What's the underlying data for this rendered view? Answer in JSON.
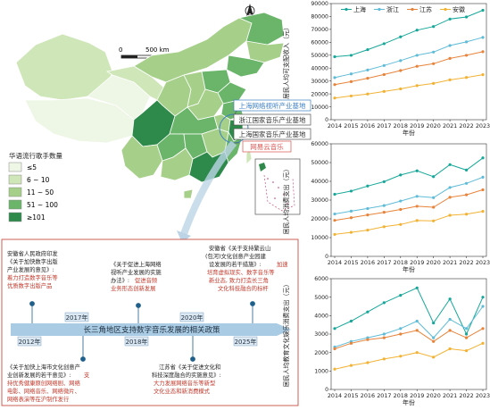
{
  "map": {
    "scale_label": "500 km",
    "scale_zero": "0",
    "legend_title": "华语流行歌手数量",
    "legend_items": [
      "≤5",
      "6 ~ 10",
      "11 ~ 50",
      "51 ~ 100",
      "≥101"
    ],
    "legend_colors": [
      "#eef6e6",
      "#cfe6b8",
      "#a6d08a",
      "#6ab56a",
      "#2e8a4a"
    ],
    "callouts": [
      "上海网络视听产业基地",
      "浙江国家音乐产业基地",
      "上海国家音乐产业基地",
      "网易云音乐"
    ]
  },
  "timeline": {
    "title": "长三角地区支持数字音乐发展的相关政策",
    "years": [
      "2012年",
      "2017年",
      "2018年",
      "2020年",
      "2025年"
    ],
    "policies": [
      {
        "year": "2012年",
        "lines_black": [
          "安徽省人民政府印发",
          "《关于加快数字出版",
          "产业发展的意见》:"
        ],
        "lines_red": [
          "着力打造数字音乐等",
          "优质数字出版产品"
        ]
      },
      {
        "year": "2017年",
        "lines_black": [
          "《关于加快上海市文化创意产",
          "业创新发展的若干意见》:"
        ],
        "lines_red": [
          "支",
          "持优秀健康原创网络剧、网络",
          "电影、网络音乐、网络微片、",
          "网络表演等在沪制作发行"
        ]
      },
      {
        "year": "2018年",
        "lines_black": [
          "《关于促进上海网络",
          "视听产业发展的实施",
          "办法》:"
        ],
        "lines_red": [
          "促进音频",
          "业务形态创新发展"
        ]
      },
      {
        "year": "2020年",
        "lines_black": [
          "江苏省《关于促进文化和",
          "科技深度融合的实施意见》:"
        ],
        "lines_red": [
          "大力发展网络音乐等新型",
          "文化业态和新消费模式"
        ]
      },
      {
        "year": "2025年",
        "lines_black": [
          "安徽省《关于支持繁云山",
          "(包河)文化创意产业园建",
          "设发展的若干措施》:"
        ],
        "lines_red": [
          "加速",
          "培育虚拟现实、数字音乐等",
          "新业态, 致力打造长三角",
          "文化科技融合的标杆"
        ]
      }
    ]
  },
  "chart_data": [
    {
      "type": "line",
      "title": "",
      "xlabel": "年份",
      "ylabel": "居民人均可支配收入（元）",
      "x": [
        "2014",
        "2015",
        "2016",
        "2017",
        "2018",
        "2019",
        "2020",
        "2021",
        "2022",
        "2023"
      ],
      "ylim": [
        0,
        90000
      ],
      "yticks": [
        0,
        10000,
        20000,
        30000,
        40000,
        50000,
        60000,
        70000,
        80000,
        90000
      ],
      "legend": "top",
      "series": [
        {
          "name": "上海",
          "color": "#17a79a",
          "values": [
            48800,
            49900,
            54300,
            58900,
            64200,
            69400,
            72200,
            78000,
            79600,
            84800
          ]
        },
        {
          "name": "浙江",
          "color": "#5fbcd8",
          "values": [
            32600,
            35500,
            38500,
            42000,
            45800,
            49900,
            52400,
            57500,
            60300,
            63800
          ]
        },
        {
          "name": "江苏",
          "color": "#e8833a",
          "values": [
            27200,
            29500,
            32100,
            35000,
            38100,
            41400,
            43400,
            47500,
            49900,
            52700
          ]
        },
        {
          "name": "安徽",
          "color": "#f2b233",
          "values": [
            16800,
            18400,
            19900,
            21900,
            23900,
            26400,
            28100,
            30900,
            32700,
            34900
          ]
        }
      ]
    },
    {
      "type": "line",
      "title": "",
      "xlabel": "年份",
      "ylabel": "居民人均消费支出（元）",
      "x": [
        "2014",
        "2015",
        "2016",
        "2017",
        "2018",
        "2019",
        "2020",
        "2021",
        "2022",
        "2023"
      ],
      "ylim": [
        0,
        60000
      ],
      "yticks": [
        0,
        10000,
        20000,
        30000,
        40000,
        50000,
        60000
      ],
      "series": [
        {
          "name": "上海",
          "color": "#17a79a",
          "values": [
            33100,
            34800,
            37500,
            39800,
            43400,
            45600,
            42500,
            48900,
            46000,
            52500
          ]
        },
        {
          "name": "浙江",
          "color": "#5fbcd8",
          "values": [
            22600,
            24100,
            25500,
            27100,
            29500,
            32000,
            31300,
            36700,
            38900,
            42200
          ]
        },
        {
          "name": "江苏",
          "color": "#e8833a",
          "values": [
            19200,
            20600,
            22100,
            23500,
            25000,
            26700,
            26200,
            31500,
            32800,
            35500
          ]
        },
        {
          "name": "安徽",
          "color": "#f2b233",
          "values": [
            11700,
            12800,
            14000,
            15800,
            17000,
            19100,
            18900,
            21900,
            22500,
            24000
          ]
        }
      ]
    },
    {
      "type": "line",
      "title": "",
      "xlabel": "年份",
      "ylabel": "居民人均教育文化娱乐消费支出（元）",
      "x": [
        "2014",
        "2015",
        "2016",
        "2017",
        "2018",
        "2019",
        "2020",
        "2021",
        "2022",
        "2023"
      ],
      "ylim": [
        0,
        6000
      ],
      "yticks": [
        0,
        1000,
        2000,
        3000,
        4000,
        5000,
        6000
      ],
      "series": [
        {
          "name": "上海",
          "color": "#17a79a",
          "values": [
            3300,
            3700,
            4200,
            4700,
            5100,
            5500,
            3600,
            4900,
            3000,
            5000
          ]
        },
        {
          "name": "浙江",
          "color": "#5fbcd8",
          "values": [
            2300,
            2600,
            2800,
            3000,
            3300,
            3700,
            2800,
            3800,
            3300,
            4500
          ]
        },
        {
          "name": "江苏",
          "color": "#e8833a",
          "values": [
            2200,
            2500,
            2700,
            2800,
            3000,
            3200,
            2600,
            3200,
            2800,
            3300
          ]
        },
        {
          "name": "安徽",
          "color": "#f2b233",
          "values": [
            1100,
            1300,
            1450,
            1650,
            1800,
            2000,
            1750,
            2200,
            2100,
            2500
          ]
        }
      ]
    }
  ]
}
